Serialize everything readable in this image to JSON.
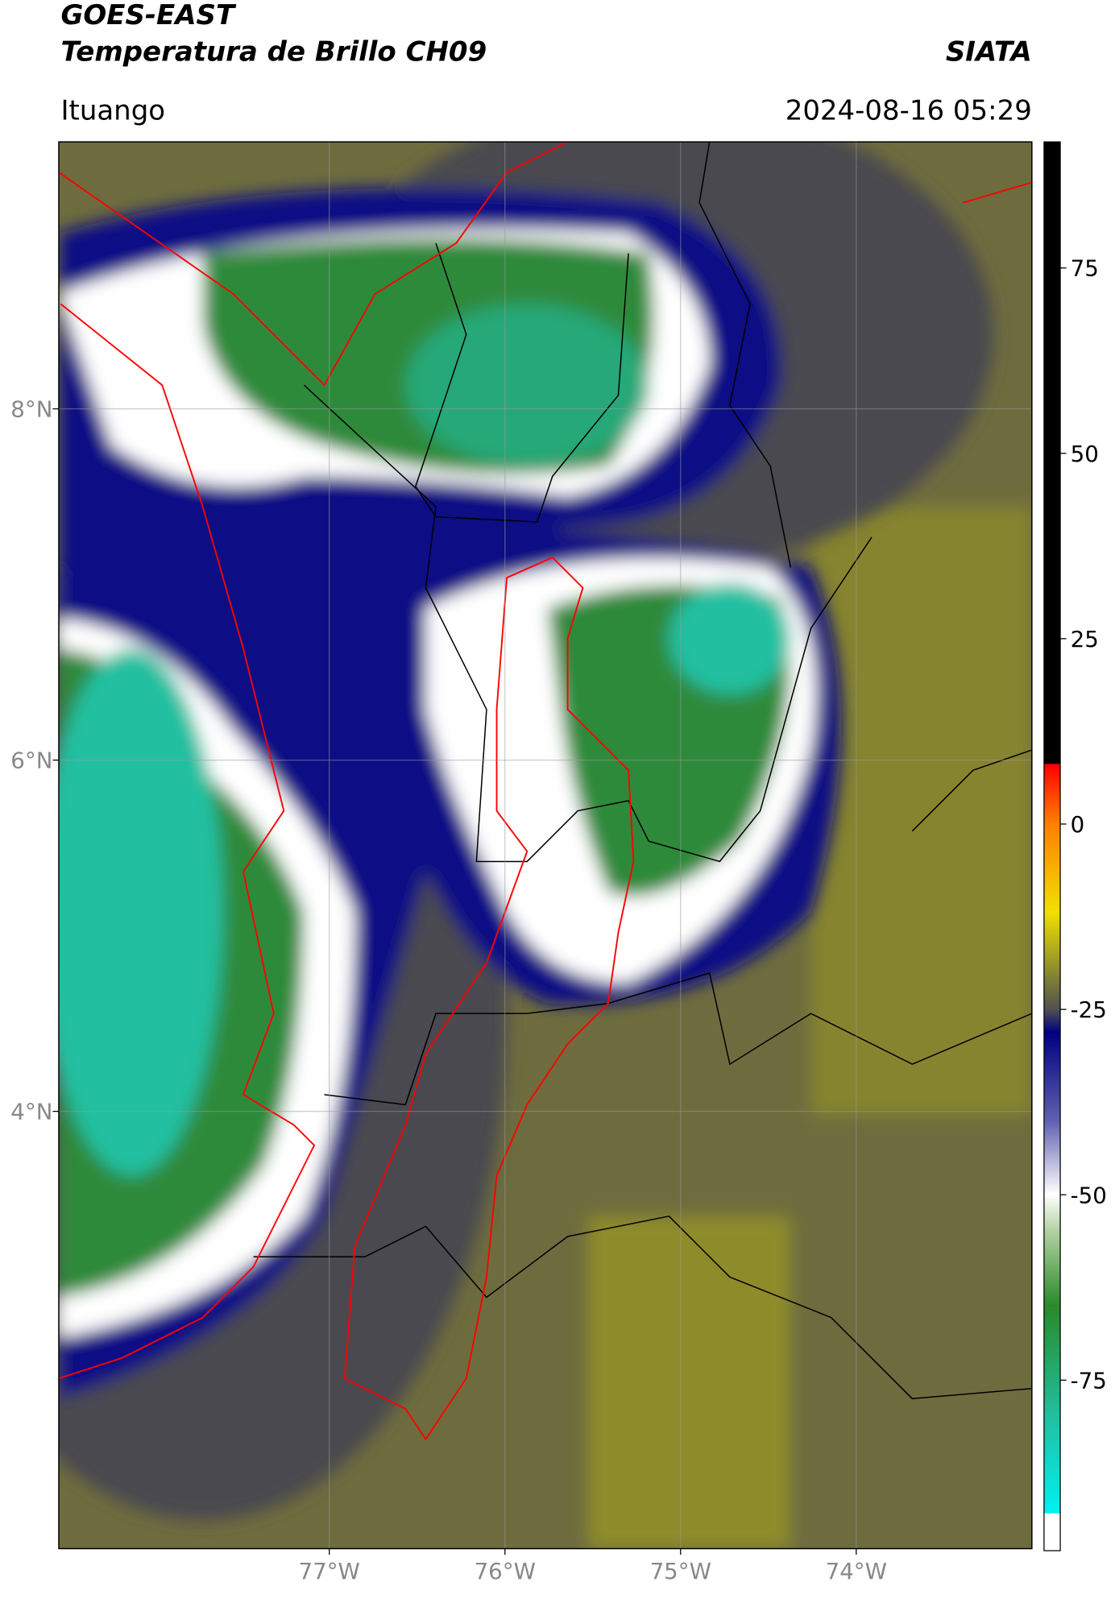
{
  "header": {
    "title": "GOES-EAST",
    "subtitle": "Temperatura de Brillo CH09",
    "source": "SIATA",
    "location": "Ituango",
    "datetime": "2024-08-16 05:29"
  },
  "chart_data": {
    "type": "map",
    "xlim": [
      -78.54,
      -73.0
    ],
    "ylim": [
      1.51,
      9.52
    ],
    "xticks": [
      {
        "value": -77,
        "label": "77°W"
      },
      {
        "value": -76,
        "label": "76°W"
      },
      {
        "value": -75,
        "label": "75°W"
      },
      {
        "value": -74,
        "label": "74°W"
      }
    ],
    "yticks": [
      {
        "value": 4,
        "label": "4°N"
      },
      {
        "value": 6,
        "label": "6°N"
      },
      {
        "value": 8,
        "label": "8°N"
      }
    ],
    "grid": true,
    "colorbar": {
      "lim": [
        -98,
        92
      ],
      "ticks": [
        -75,
        -50,
        -25,
        0,
        25,
        50,
        75
      ]
    }
  }
}
